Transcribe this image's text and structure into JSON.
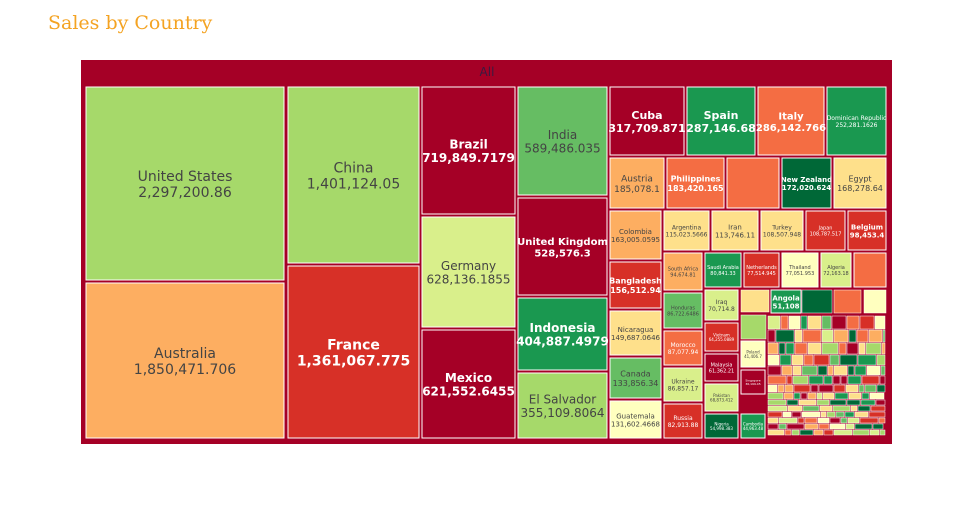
{
  "title": "Sales by Country",
  "chart_data": {
    "type": "treemap",
    "root_label": "All",
    "root_color": "#a50026",
    "items": [
      {
        "name": "United States",
        "value": 2297200.86,
        "label": "2,297,200.86",
        "color": "#a6d96a"
      },
      {
        "name": "Australia",
        "value": 1850471.706,
        "label": "1,850,471.706",
        "color": "#fdae61"
      },
      {
        "name": "China",
        "value": 1401124.05,
        "label": "1,401,124.05",
        "color": "#a6d96a"
      },
      {
        "name": "France",
        "value": 1361067.775,
        "label": "1,361,067.775",
        "color": "#d73027"
      },
      {
        "name": "Brazil",
        "value": 719849.7179,
        "label": "719,849.7179",
        "color": "#a50026"
      },
      {
        "name": "Germany",
        "value": 628136.1855,
        "label": "628,136.1855",
        "color": "#d9ef8b"
      },
      {
        "name": "Mexico",
        "value": 621552.6455,
        "label": "621,552.6455",
        "color": "#a50026"
      },
      {
        "name": "India",
        "value": 589486.035,
        "label": "589,486.035",
        "color": "#66bd63"
      },
      {
        "name": "United Kingdom",
        "value": 528576.3,
        "label": "528,576.3",
        "color": "#a50026"
      },
      {
        "name": "Indonesia",
        "value": 404887.4979,
        "label": "404,887.4979",
        "color": "#1a9850"
      },
      {
        "name": "El Salvador",
        "value": 355109.8064,
        "label": "355,109.8064",
        "color": "#a6d96a"
      },
      {
        "name": "Cuba",
        "value": 317709.871,
        "label": "317,709.871",
        "color": "#a50026"
      },
      {
        "name": "Spain",
        "value": 287146.68,
        "label": "287,146.68",
        "color": "#1a9850"
      },
      {
        "name": "Italy",
        "value": 286142.766,
        "label": "286,142.766",
        "color": "#f46d43"
      },
      {
        "name": "Dominican Republic",
        "value": 252281.1626,
        "label": "252,281.1626",
        "color": "#1a9850"
      },
      {
        "name": "Austria",
        "value": 185078.1,
        "label": "185,078.1",
        "color": "#fdae61"
      },
      {
        "name": "Philippines",
        "value": 183420.165,
        "label": "183,420.165",
        "color": "#f46d43"
      },
      {
        "name": "New Zealand",
        "value": 172020.624,
        "label": "172,020.624",
        "color": "#006837"
      },
      {
        "name": "Egypt",
        "value": 168278.64,
        "label": "168,278.64",
        "color": "#fee08b"
      },
      {
        "name": "Colombia",
        "value": 163005.0595,
        "label": "163,005.0595",
        "color": "#fdae61"
      },
      {
        "name": "Bangladesh",
        "value": 156512.94,
        "label": "156,512.94",
        "color": "#d73027"
      },
      {
        "name": "Nicaragua",
        "value": 149687.0646,
        "label": "149,687.0646",
        "color": "#fee08b"
      },
      {
        "name": "Canada",
        "value": 133856.34,
        "label": "133,856.34",
        "color": "#66bd63"
      },
      {
        "name": "Guatemala",
        "value": 131602.4668,
        "label": "131,602.4668",
        "color": "#ffffbf"
      },
      {
        "name": "Argentina",
        "value": 115023.5666,
        "label": "115,023.5666",
        "color": "#fee08b"
      },
      {
        "name": "Iran",
        "value": 113746.11,
        "label": "113,746.11",
        "color": "#fee08b"
      },
      {
        "name": "Turkey",
        "value": 108507.948,
        "label": "108,507.948",
        "color": "#fee08b"
      },
      {
        "name": "Japan",
        "value": 108787.517,
        "label": "108,787.517",
        "color": "#d73027"
      },
      {
        "name": "Belgium",
        "value": 98453.4,
        "label": "98,453.4",
        "color": "#d73027"
      },
      {
        "name": "South Africa",
        "value": 94674.81,
        "label": "94,674.81",
        "color": "#fdae61"
      },
      {
        "name": "Saudi Arabia",
        "value": 80841.33,
        "label": "80,841.33",
        "color": "#1a9850"
      },
      {
        "name": "Netherlands",
        "value": 77514.945,
        "label": "77,514.945",
        "color": "#d73027"
      },
      {
        "name": "Thailand",
        "value": 77051.953,
        "label": "77,051.953",
        "color": "#ffffbf"
      },
      {
        "name": "Algeria",
        "value": 72163.18,
        "label": "72,163.18",
        "color": "#d9ef8b"
      },
      {
        "name": "Honduras",
        "value": 86722.6486,
        "label": "86,722.6486",
        "color": "#66bd63"
      },
      {
        "name": "Iraq",
        "value": 70714.8,
        "label": "70,714.8",
        "color": "#d9ef8b"
      },
      {
        "name": "Angola",
        "value": 51108,
        "label": "51,108",
        "color": "#1a9850"
      },
      {
        "name": "Morocco",
        "value": 87077.94,
        "label": "87,077.94",
        "color": "#f46d43"
      },
      {
        "name": "Vietnam",
        "value": 64255.0889,
        "label": "64,255.0889",
        "color": "#d73027"
      },
      {
        "name": "Poland",
        "value": 41406.7,
        "label": "41,406.7",
        "color": "#ffffbf"
      },
      {
        "name": "Ukraine",
        "value": 86857.17,
        "label": "86,857.17",
        "color": "#d9ef8b"
      },
      {
        "name": "Malaysia",
        "value": 61362.21,
        "label": "61,362.21",
        "color": "#a50026"
      },
      {
        "name": "Pakistan",
        "value": 68873.412,
        "label": "68,873.412",
        "color": "#d9ef8b"
      },
      {
        "name": "Russia",
        "value": 82913.88,
        "label": "82,913.88",
        "color": "#d73027"
      },
      {
        "name": "Nigeria",
        "value": 54998.383,
        "label": "54,998.383",
        "color": "#006837"
      },
      {
        "name": "Cambodia",
        "value": 44963.48,
        "label": "44,963.48",
        "color": "#1a9850"
      },
      {
        "name": "Singapore",
        "value": 36199.45,
        "label": "36,199.45",
        "color": "#a50026"
      }
    ]
  }
}
